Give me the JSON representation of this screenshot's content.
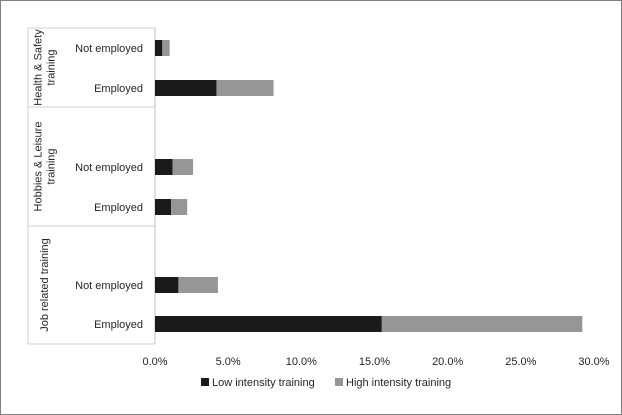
{
  "chart_data": {
    "type": "bar",
    "orientation": "horizontal",
    "stacked": true,
    "title": "",
    "xlabel": "",
    "ylabel": "",
    "xlim": [
      0,
      30
    ],
    "x_ticks": [
      "0.0%",
      "5.0%",
      "10.0%",
      "15.0%",
      "20.0%",
      "25.0%",
      "30.0%"
    ],
    "x_tick_values": [
      0,
      5,
      10,
      15,
      20,
      25,
      30
    ],
    "grid": false,
    "legend": "bottom",
    "groups": [
      {
        "label": "Health & Safety training",
        "label_lines": [
          "Health & Safety",
          "training"
        ],
        "categories": [
          "Not employed",
          "Employed"
        ]
      },
      {
        "label": "Hobbies & Leisure training",
        "label_lines": [
          "Hobbies & Leisure",
          "training"
        ],
        "categories": [
          "Not employed",
          "Employed"
        ]
      },
      {
        "label": "Job related training",
        "label_lines": [
          "Job related training"
        ],
        "categories": [
          "Not employed",
          "Employed"
        ]
      }
    ],
    "categories": [
      "Health & Safety training / Not employed",
      "Health & Safety training / Employed",
      "Hobbies & Leisure training / Not employed",
      "Hobbies & Leisure training / Employed",
      "Job related training / Not employed",
      "Job related training / Employed"
    ],
    "series": [
      {
        "name": "Low intensity training",
        "color": "#1a1a1a",
        "values": [
          0.5,
          4.2,
          1.2,
          1.1,
          1.6,
          15.5
        ]
      },
      {
        "name": "High intensity training",
        "color": "#969696",
        "values": [
          0.5,
          3.9,
          1.4,
          1.1,
          2.7,
          13.7
        ]
      }
    ]
  }
}
